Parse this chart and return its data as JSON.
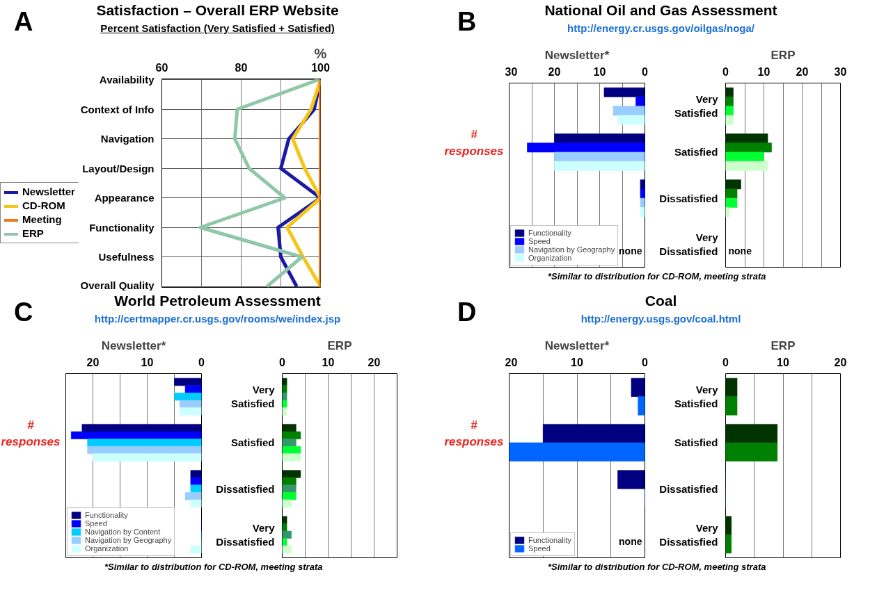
{
  "chart_data": [
    {
      "type": "line",
      "orientation": "horizontal",
      "title": "Satisfaction – Overall ERP Website",
      "subtitle": "Percent Satisfaction (Very Satisfied + Satisfied)",
      "annotations": [
        "A",
        "%"
      ],
      "categories": [
        "Availability",
        "Context of Info",
        "Navigation",
        "Layout/Design",
        "Appearance",
        "Functionality",
        "Usefulness",
        "Overall Quality"
      ],
      "xlim": [
        60,
        100
      ],
      "xticks": [
        60,
        {
          "value": 70,
          "label": null
        },
        80,
        {
          "value": 90,
          "label": null
        },
        100
      ],
      "grid": true,
      "legend": "left",
      "series": [
        {
          "name": "Newsletter",
          "color": "#1a1aa6",
          "values": [
            100,
            98.4,
            92,
            90,
            100,
            89.3,
            90,
            94
          ]
        },
        {
          "name": "CD-ROM",
          "color": "#f5c518",
          "values": [
            100,
            97.6,
            93,
            96,
            100,
            91.6,
            95.6,
            100
          ]
        },
        {
          "name": "Meeting",
          "color": "#f07820",
          "values": [
            100,
            100,
            100,
            100,
            100,
            100,
            100,
            100
          ]
        },
        {
          "name": "ERP",
          "color": "#8fc7a8",
          "values": [
            99.5,
            79,
            78.4,
            82,
            91,
            69.7,
            95.3,
            86.5
          ]
        }
      ]
    },
    {
      "type": "bar",
      "orientation": "horizontal",
      "title": "Newsletter*",
      "annotations": [
        "B",
        "National Oil and Gas Assessment",
        "http://energy.cr.usgs.gov/oilgas/noga/",
        "# responses",
        "*Similar to distribution for CD-ROM, meeting strata",
        "none"
      ],
      "xlim": [
        30,
        0
      ],
      "xticks": [
        0,
        {
          "value": 5,
          "label": null
        },
        10,
        {
          "value": 15,
          "label": null
        },
        20,
        {
          "value": 25,
          "label": null
        },
        30
      ],
      "grid": "x",
      "tick_labels": "x",
      "legend": "bottom left",
      "series": [
        {
          "name": "Functionality",
          "color": "#000080",
          "values": [
            9,
            20,
            1,
            null
          ]
        },
        {
          "name": "Speed",
          "color": "#0000ff",
          "values": [
            2,
            26,
            1,
            null
          ]
        },
        {
          "name": "Navigation by Geography",
          "color": "#99ccff",
          "values": [
            7,
            20,
            1,
            null
          ]
        },
        {
          "name": "Organization",
          "color": "#ccffff",
          "values": [
            6,
            20,
            1,
            null
          ]
        }
      ]
    },
    {
      "type": "bar",
      "orientation": "horizontal",
      "title": "ERP",
      "annotations": [
        "none"
      ],
      "categories": [
        "Very Satisfied",
        "Satisfied",
        "Dissatisfied",
        "Very Dissatisfied"
      ],
      "xlim": [
        0,
        30
      ],
      "xticks": [
        0,
        {
          "value": 5,
          "label": null
        },
        10,
        {
          "value": 15,
          "label": null
        },
        20,
        {
          "value": 25,
          "label": null
        },
        30
      ],
      "grid": "x",
      "series": [
        {
          "color": "#003300",
          "values": [
            2,
            11,
            4,
            null
          ]
        },
        {
          "color": "#008000",
          "values": [
            2,
            12,
            3,
            null
          ]
        },
        {
          "color": "#00ff33",
          "values": [
            2,
            10,
            3,
            null
          ]
        },
        {
          "color": "#ccffcc",
          "values": [
            2,
            11,
            1,
            null
          ]
        }
      ]
    },
    {
      "type": "bar",
      "orientation": "horizontal",
      "title": "Newsletter*",
      "annotations": [
        "C",
        "World Petroleum Assessment",
        "http://certmapper.cr.usgs.gov/rooms/we/index.jsp",
        "# responses",
        "*Similar to distribution for CD-ROM, meeting strata"
      ],
      "xlim": [
        25,
        0
      ],
      "xticks": [
        0,
        {
          "value": 5,
          "label": null
        },
        10,
        {
          "value": 15,
          "label": null
        },
        20,
        {
          "value": 25,
          "label": null
        }
      ],
      "grid": "x",
      "tick_labels": "x",
      "legend": "bottom left",
      "series": [
        {
          "name": "Functionality",
          "color": "#000080",
          "values": [
            5,
            22,
            2,
            0
          ]
        },
        {
          "name": "Speed",
          "color": "#0000ff",
          "values": [
            3,
            24,
            2,
            0
          ]
        },
        {
          "name": "Navigation by Content",
          "color": "#00ccff",
          "values": [
            5,
            21,
            2,
            0
          ]
        },
        {
          "name": "Navigation by Geography",
          "color": "#99ccff",
          "values": [
            4,
            21,
            3,
            0
          ]
        },
        {
          "name": "Organization",
          "color": "#ccffff",
          "values": [
            4,
            20,
            2,
            2
          ]
        }
      ]
    },
    {
      "type": "bar",
      "orientation": "horizontal",
      "title": "ERP",
      "categories": [
        "Very Satisfied",
        "Satisfied",
        "Dissatisfied",
        "Very Dissatisfied"
      ],
      "xlim": [
        0,
        25
      ],
      "xticks": [
        0,
        {
          "value": 5,
          "label": null
        },
        10,
        {
          "value": 15,
          "label": null
        },
        20,
        {
          "value": 25,
          "label": null
        }
      ],
      "grid": "x",
      "series": [
        {
          "color": "#003300",
          "values": [
            1,
            3,
            4,
            1
          ]
        },
        {
          "color": "#008000",
          "values": [
            1,
            4,
            3,
            1
          ]
        },
        {
          "color": "#339966",
          "values": [
            1,
            3,
            3,
            2
          ]
        },
        {
          "color": "#00ff33",
          "values": [
            1,
            4,
            3,
            1
          ]
        },
        {
          "color": "#ccffcc",
          "values": [
            1,
            4,
            2,
            2
          ]
        }
      ]
    },
    {
      "type": "bar",
      "orientation": "horizontal",
      "title": "Newsletter*",
      "annotations": [
        "D",
        "Coal",
        "http://energy.usgs.gov/coal.html",
        "# responses",
        "*Similar to distribution for CD-ROM, meeting strata",
        "none"
      ],
      "xlim": [
        20,
        0
      ],
      "xticks": [
        0,
        {
          "value": 5,
          "label": null
        },
        10,
        {
          "value": 15,
          "label": null
        },
        20
      ],
      "grid": "x",
      "tick_labels": "x",
      "legend": "bottom left",
      "series": [
        {
          "name": "Functionality",
          "color": "#000080",
          "values": [
            2,
            15,
            4,
            null
          ]
        },
        {
          "name": "Speed",
          "color": "#0066ff",
          "values": [
            1,
            20,
            0,
            null
          ]
        }
      ]
    },
    {
      "type": "bar",
      "orientation": "horizontal",
      "title": "ERP",
      "categories": [
        "Very Satisfied",
        "Satisfied",
        "Dissatisfied",
        "Very Dissatisfied"
      ],
      "xlim": [
        0,
        20
      ],
      "xticks": [
        0,
        {
          "value": 5,
          "label": null
        },
        10,
        {
          "value": 15,
          "label": null
        },
        20
      ],
      "grid": "x",
      "series": [
        {
          "color": "#003300",
          "values": [
            2,
            9,
            0,
            1
          ]
        },
        {
          "color": "#008000",
          "values": [
            2,
            9,
            0,
            1
          ]
        }
      ]
    }
  ]
}
